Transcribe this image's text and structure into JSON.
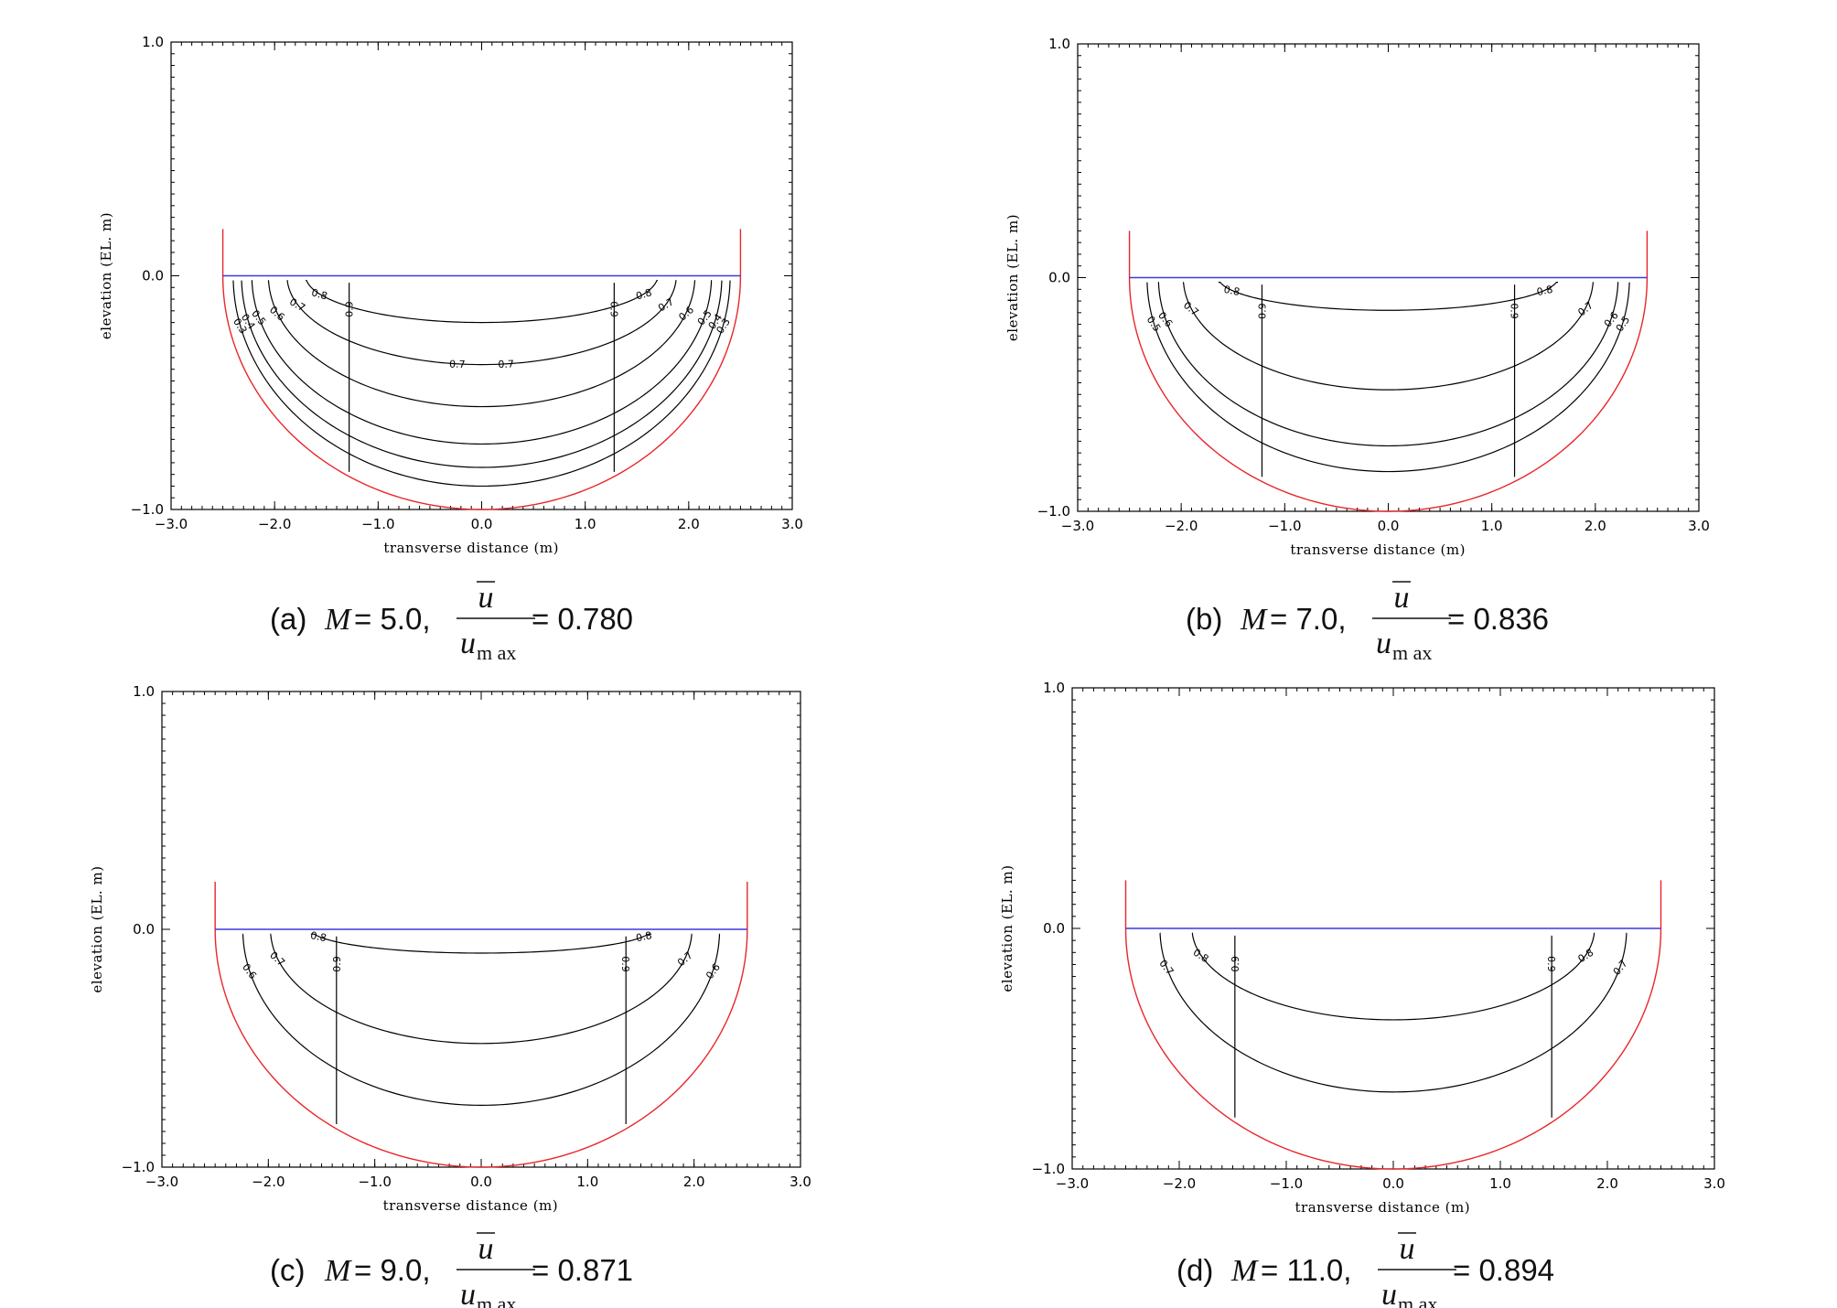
{
  "chart_data": [
    {
      "type": "contour",
      "panel": "a",
      "caption": {
        "prefix": "(a) ",
        "var": "M",
        "mid": "= 5.0, ",
        "num": "u",
        "den": "u",
        "den_sub": "m ax",
        "result": "= 0.780"
      },
      "M": 5.0,
      "mean_over_max": 0.78,
      "xlabel": "transverse distance (m)",
      "ylabel": "elevation (EL. m)",
      "xlim": [
        -3.0,
        3.0
      ],
      "ylim": [
        -1.0,
        1.0
      ],
      "xticks": [
        "−3.0",
        "−2.0",
        "−1.0",
        "0.0",
        "1.0",
        "2.0",
        "3.0"
      ],
      "yticks": [
        "−1.0",
        "0.0",
        "1.0"
      ],
      "channel": {
        "half_width": 2.5,
        "depth": 1.0,
        "bank_top": 0.2,
        "water_surface": 0.0
      },
      "contour_levels": [
        0.3,
        0.4,
        0.5,
        0.6,
        0.7,
        0.8,
        0.9
      ],
      "contour_label_text": [
        "0.3",
        "0.4",
        "0.5",
        "0.6",
        "0.7",
        "0.8",
        "0.9"
      ]
    },
    {
      "type": "contour",
      "panel": "b",
      "caption": {
        "prefix": "(b) ",
        "var": "M",
        "mid": "= 7.0, ",
        "num": "u",
        "den": "u",
        "den_sub": "m ax",
        "result": "= 0.836"
      },
      "M": 7.0,
      "mean_over_max": 0.836,
      "xlabel": "transverse distance (m)",
      "ylabel": "elevation (EL. m)",
      "xlim": [
        -3.0,
        3.0
      ],
      "ylim": [
        -1.0,
        1.0
      ],
      "xticks": [
        "−3.0",
        "−2.0",
        "−1.0",
        "0.0",
        "1.0",
        "2.0",
        "3.0"
      ],
      "yticks": [
        "−1.0",
        "0.0",
        "1.0"
      ],
      "channel": {
        "half_width": 2.5,
        "depth": 1.0,
        "bank_top": 0.2,
        "water_surface": 0.0
      },
      "contour_levels": [
        0.5,
        0.6,
        0.7,
        0.8,
        0.9
      ],
      "contour_label_text": [
        "0.5",
        "0.6",
        "0.7",
        "0.8",
        "0.9"
      ]
    },
    {
      "type": "contour",
      "panel": "c",
      "caption": {
        "prefix": "(c) ",
        "var": "M",
        "mid": "= 9.0, ",
        "num": "u",
        "den": "u",
        "den_sub": "m ax",
        "result": "= 0.871"
      },
      "M": 9.0,
      "mean_over_max": 0.871,
      "xlabel": "transverse distance (m)",
      "ylabel": "elevation (EL. m)",
      "xlim": [
        -3.0,
        3.0
      ],
      "ylim": [
        -1.0,
        1.0
      ],
      "xticks": [
        "−3.0",
        "−2.0",
        "−1.0",
        "0.0",
        "1.0",
        "2.0",
        "3.0"
      ],
      "yticks": [
        "−1.0",
        "0.0",
        "1.0"
      ],
      "channel": {
        "half_width": 2.5,
        "depth": 1.0,
        "bank_top": 0.2,
        "water_surface": 0.0
      },
      "contour_levels": [
        0.6,
        0.7,
        0.8,
        0.9
      ],
      "contour_label_text": [
        "0.6",
        "0.7",
        "0.8",
        "0.9"
      ]
    },
    {
      "type": "contour",
      "panel": "d",
      "caption": {
        "prefix": "(d) ",
        "var": "M",
        "mid": "= 11.0, ",
        "num": "u",
        "den": "u",
        "den_sub": "m ax",
        "result": "= 0.894"
      },
      "M": 11.0,
      "mean_over_max": 0.894,
      "xlabel": "transverse distance (m)",
      "ylabel": "elevation (EL. m)",
      "xlim": [
        -3.0,
        3.0
      ],
      "ylim": [
        -1.0,
        1.0
      ],
      "xticks": [
        "−3.0",
        "−2.0",
        "−1.0",
        "0.0",
        "1.0",
        "2.0",
        "3.0"
      ],
      "yticks": [
        "−1.0",
        "0.0",
        "1.0"
      ],
      "channel": {
        "half_width": 2.5,
        "depth": 1.0,
        "bank_top": 0.2,
        "water_surface": 0.0
      },
      "contour_levels": [
        0.7,
        0.8,
        0.9
      ],
      "contour_label_text": [
        "0.7",
        "0.8",
        "0.9"
      ]
    }
  ],
  "colors": {
    "channel_bed": "#e8262a",
    "water_surface": "#3a3adf",
    "contour": "#000000",
    "axes": "#000000"
  }
}
